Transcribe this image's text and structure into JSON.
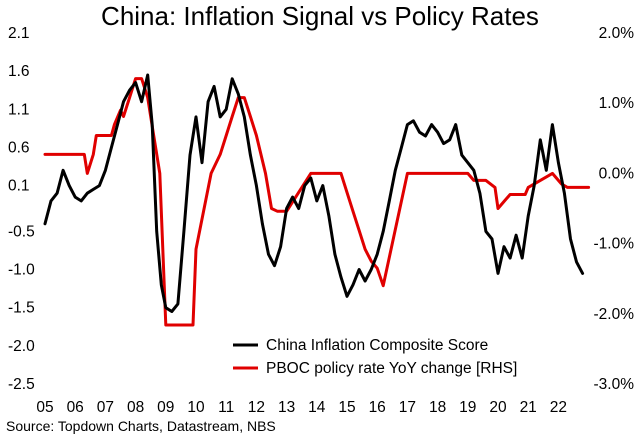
{
  "chart_data": {
    "type": "line",
    "title": "China: Inflation Signal vs Policy Rates",
    "source": "Source: Topdown Charts, Datastream, NBS",
    "x_ticks": [
      "05",
      "06",
      "07",
      "08",
      "09",
      "10",
      "11",
      "12",
      "13",
      "14",
      "15",
      "16",
      "17",
      "18",
      "19",
      "20",
      "21",
      "22"
    ],
    "xlim": [
      2005.0,
      2023.5
    ],
    "left_axis": {
      "ticks": [
        "2.1",
        "1.6",
        "1.1",
        "0.6",
        "0.1",
        "-0.5",
        "-1.0",
        "-1.5",
        "-2.0",
        "-2.5"
      ],
      "ylim": [
        -2.5,
        2.1
      ]
    },
    "right_axis": {
      "ticks": [
        "2.0%",
        "1.0%",
        "0.0%",
        "-1.0%",
        "-2.0%",
        "-3.0%"
      ],
      "ylim": [
        -3.0,
        2.0
      ]
    },
    "legend": [
      {
        "name": "China Inflation Composite Score",
        "color": "#000000"
      },
      {
        "name": "PBOC policy rate YoY change [RHS]",
        "color": "#e00000"
      }
    ],
    "series": [
      {
        "name": "China Inflation Composite Score",
        "axis": "left",
        "color": "#000000",
        "x": [
          2005.0,
          2005.2,
          2005.4,
          2005.6,
          2005.8,
          2006.0,
          2006.2,
          2006.4,
          2006.6,
          2006.8,
          2007.0,
          2007.2,
          2007.4,
          2007.6,
          2007.8,
          2008.0,
          2008.2,
          2008.4,
          2008.55,
          2008.7,
          2008.85,
          2009.0,
          2009.2,
          2009.4,
          2009.6,
          2009.8,
          2010.0,
          2010.2,
          2010.4,
          2010.6,
          2010.8,
          2011.0,
          2011.2,
          2011.4,
          2011.6,
          2011.8,
          2012.0,
          2012.2,
          2012.4,
          2012.6,
          2012.8,
          2013.0,
          2013.2,
          2013.4,
          2013.6,
          2013.8,
          2014.0,
          2014.2,
          2014.4,
          2014.6,
          2014.8,
          2015.0,
          2015.2,
          2015.4,
          2015.6,
          2015.8,
          2016.0,
          2016.2,
          2016.4,
          2016.6,
          2016.8,
          2017.0,
          2017.2,
          2017.4,
          2017.6,
          2017.8,
          2018.0,
          2018.2,
          2018.4,
          2018.6,
          2018.8,
          2019.0,
          2019.2,
          2019.4,
          2019.6,
          2019.8,
          2020.0,
          2020.2,
          2020.4,
          2020.6,
          2020.8,
          2021.0,
          2021.2,
          2021.4,
          2021.6,
          2021.8,
          2022.0,
          2022.2,
          2022.4,
          2022.6,
          2022.8
        ],
        "values": [
          -0.4,
          -0.1,
          0.0,
          0.3,
          0.1,
          -0.05,
          -0.1,
          0.0,
          0.05,
          0.1,
          0.3,
          0.6,
          0.9,
          1.2,
          1.35,
          1.45,
          1.2,
          1.55,
          0.9,
          -0.5,
          -1.2,
          -1.5,
          -1.55,
          -1.45,
          -0.5,
          0.5,
          1.0,
          0.4,
          1.2,
          1.4,
          1.0,
          1.1,
          1.5,
          1.3,
          1.0,
          0.5,
          0.1,
          -0.4,
          -0.8,
          -0.95,
          -0.7,
          -0.2,
          -0.05,
          -0.2,
          0.1,
          0.2,
          -0.1,
          0.1,
          -0.3,
          -0.8,
          -1.1,
          -1.35,
          -1.2,
          -1.0,
          -1.15,
          -1.0,
          -0.8,
          -0.5,
          -0.1,
          0.3,
          0.6,
          0.9,
          0.95,
          0.8,
          0.75,
          0.9,
          0.8,
          0.65,
          0.7,
          0.9,
          0.5,
          0.4,
          0.3,
          0.0,
          -0.5,
          -0.6,
          -1.05,
          -0.7,
          -0.85,
          -0.55,
          -0.85,
          -0.3,
          0.1,
          0.7,
          0.3,
          0.9,
          0.4,
          0.0,
          -0.6,
          -0.9,
          -1.05
        ]
      },
      {
        "name": "PBOC policy rate YoY change [RHS]",
        "axis": "right",
        "color": "#e00000",
        "x": [
          2005.0,
          2006.3,
          2006.4,
          2006.6,
          2006.7,
          2007.2,
          2007.3,
          2007.5,
          2007.6,
          2007.8,
          2008.0,
          2008.2,
          2008.4,
          2008.6,
          2008.8,
          2008.9,
          2009.0,
          2009.9,
          2010.0,
          2010.5,
          2010.8,
          2011.0,
          2011.2,
          2011.4,
          2011.6,
          2011.8,
          2012.0,
          2012.3,
          2012.5,
          2012.7,
          2012.9,
          2013.0,
          2013.8,
          2014.0,
          2014.2,
          2014.8,
          2015.0,
          2015.2,
          2015.4,
          2015.6,
          2015.8,
          2016.0,
          2016.2,
          2017.0,
          2019.0,
          2019.2,
          2019.6,
          2019.9,
          2020.0,
          2020.2,
          2020.4,
          2020.9,
          2021.0,
          2021.8,
          2022.0,
          2022.1,
          2022.3,
          2022.6,
          2023.0
        ],
        "values": [
          0.27,
          0.27,
          0.0,
          0.27,
          0.54,
          0.54,
          0.7,
          0.9,
          0.81,
          1.08,
          1.35,
          1.35,
          1.08,
          0.54,
          0.0,
          -1.08,
          -2.16,
          -2.16,
          -1.08,
          0.0,
          0.27,
          0.54,
          0.81,
          1.08,
          1.08,
          0.81,
          0.54,
          0.0,
          -0.5,
          -0.54,
          -0.54,
          -0.54,
          0.0,
          0.0,
          0.0,
          0.0,
          -0.27,
          -0.54,
          -0.81,
          -1.08,
          -1.25,
          -1.35,
          -1.6,
          0.0,
          0.0,
          -0.1,
          -0.1,
          -0.2,
          -0.5,
          -0.4,
          -0.3,
          -0.3,
          -0.2,
          0.0,
          -0.1,
          -0.15,
          -0.2,
          -0.2,
          -0.2
        ]
      }
    ]
  }
}
